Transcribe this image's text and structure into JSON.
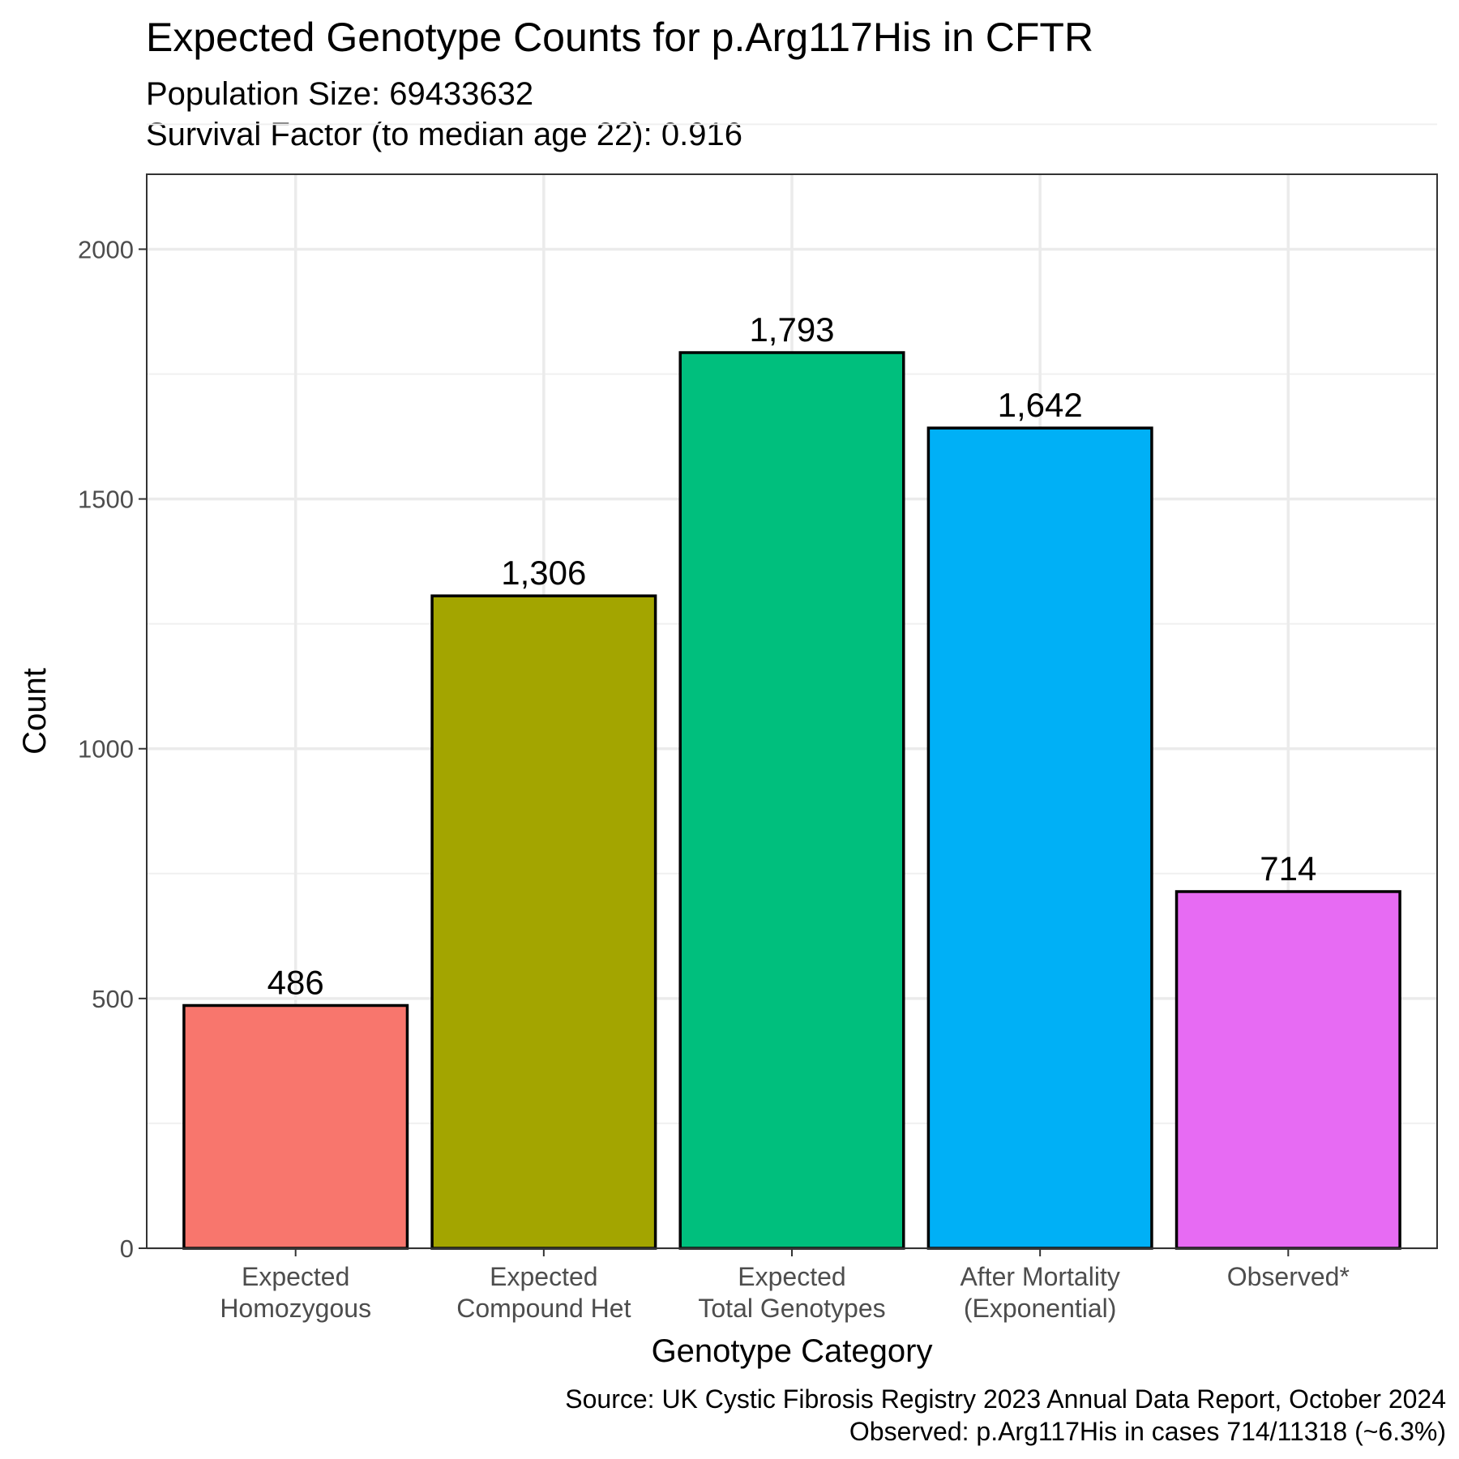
{
  "chart_data": {
    "type": "bar",
    "title": "Expected Genotype Counts for p.Arg117His in CFTR",
    "subtitle_lines": [
      "Population Size: 69433632",
      "Survival Factor (to median age 22): 0.916"
    ],
    "xlabel": "Genotype Category",
    "ylabel": "Count",
    "categories": [
      [
        "Expected",
        "Homozygous"
      ],
      [
        "Expected",
        "Compound Het"
      ],
      [
        "Expected",
        "Total Genotypes"
      ],
      [
        "After Mortality",
        "(Exponential)"
      ],
      [
        "Observed*"
      ]
    ],
    "values": [
      486,
      1306,
      1793,
      1642,
      714
    ],
    "value_labels": [
      "486",
      "1,306",
      "1,793",
      "1,642",
      "714"
    ],
    "colors": [
      "#F8766D",
      "#A3A500",
      "#00BF7D",
      "#00B0F6",
      "#E76BF3"
    ],
    "ylim": [
      0,
      2150
    ],
    "yticks": [
      0,
      500,
      1000,
      1500,
      2000
    ],
    "grid": true,
    "legend": "none",
    "caption_lines": [
      "Source: UK Cystic Fibrosis Registry 2023 Annual Data Report, October 2024",
      "Observed: p.Arg117His in cases 714/11318 (~6.3%)"
    ]
  }
}
